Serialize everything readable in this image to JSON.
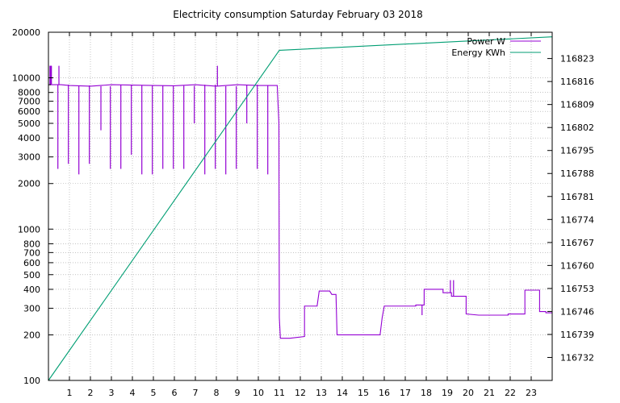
{
  "colors": {
    "power": "#9400d3",
    "energy": "#009e73",
    "grid": "#a0a0a0",
    "axis": "#000000"
  },
  "chart_data": {
    "type": "line",
    "title": "Electricity consumption Saturday February 03 2018",
    "xlim": [
      0,
      24
    ],
    "x_ticks": [
      1,
      2,
      3,
      4,
      5,
      6,
      7,
      8,
      9,
      10,
      11,
      12,
      13,
      14,
      15,
      16,
      17,
      18,
      19,
      20,
      21,
      22,
      23
    ],
    "y_left": {
      "scale": "log",
      "lim": [
        100,
        20000
      ],
      "ticks": [
        100,
        200,
        300,
        400,
        500,
        600,
        700,
        800,
        1000,
        2000,
        3000,
        4000,
        5000,
        6000,
        7000,
        8000,
        10000,
        20000
      ]
    },
    "y_right": {
      "scale": "linear",
      "lim": [
        116725,
        116831
      ],
      "ticks": [
        116732,
        116739,
        116746,
        116753,
        116760,
        116767,
        116774,
        116781,
        116788,
        116795,
        116802,
        116809,
        116816,
        116823
      ]
    },
    "legend": {
      "placement": "top-right",
      "entries": [
        "Power W",
        "Energy KWh"
      ]
    },
    "series": [
      {
        "name": "Power W",
        "axis": "left",
        "baseline": [
          [
            0.05,
            9000
          ],
          [
            0.6,
            9000
          ],
          [
            1.0,
            8900
          ],
          [
            2.0,
            8800
          ],
          [
            3.0,
            9000
          ],
          [
            4.0,
            8950
          ],
          [
            5.0,
            8900
          ],
          [
            6.0,
            8850
          ],
          [
            7.0,
            9000
          ],
          [
            8.0,
            8800
          ],
          [
            9.0,
            9000
          ],
          [
            10.0,
            8900
          ],
          [
            10.9,
            8900
          ],
          [
            10.98,
            5000
          ],
          [
            11.0,
            260
          ],
          [
            11.05,
            190
          ],
          [
            11.5,
            190
          ],
          [
            12.2,
            195
          ],
          [
            12.2,
            310
          ],
          [
            12.8,
            310
          ],
          [
            12.9,
            390
          ],
          [
            13.4,
            390
          ],
          [
            13.5,
            370
          ],
          [
            13.7,
            370
          ],
          [
            13.75,
            200
          ],
          [
            15.8,
            200
          ],
          [
            15.9,
            260
          ],
          [
            16.0,
            310
          ],
          [
            17.5,
            310
          ],
          [
            17.5,
            315
          ],
          [
            17.9,
            315
          ],
          [
            17.9,
            400
          ],
          [
            18.8,
            400
          ],
          [
            18.8,
            380
          ],
          [
            19.2,
            380
          ],
          [
            19.2,
            360
          ],
          [
            19.9,
            360
          ],
          [
            19.9,
            275
          ],
          [
            20.5,
            270
          ],
          [
            21.9,
            270
          ],
          [
            21.9,
            275
          ],
          [
            22.7,
            275
          ],
          [
            22.7,
            395
          ],
          [
            23.4,
            395
          ],
          [
            23.4,
            285
          ],
          [
            23.7,
            285
          ],
          [
            23.7,
            280
          ],
          [
            24.0,
            280
          ]
        ],
        "spikes": [
          [
            0.08,
            12000
          ],
          [
            0.13,
            12000
          ],
          [
            0.5,
            12000
          ],
          [
            0.45,
            2500
          ],
          [
            0.95,
            2700
          ],
          [
            1.45,
            2300
          ],
          [
            1.95,
            2700
          ],
          [
            2.5,
            4500
          ],
          [
            2.95,
            2500
          ],
          [
            3.45,
            2500
          ],
          [
            3.95,
            3100
          ],
          [
            4.45,
            2300
          ],
          [
            4.95,
            2300
          ],
          [
            5.45,
            2500
          ],
          [
            5.95,
            2500
          ],
          [
            6.45,
            2500
          ],
          [
            6.95,
            5000
          ],
          [
            7.45,
            2300
          ],
          [
            7.95,
            2500
          ],
          [
            8.05,
            12000
          ],
          [
            8.45,
            2300
          ],
          [
            8.95,
            2500
          ],
          [
            9.45,
            5000
          ],
          [
            9.95,
            2500
          ],
          [
            10.45,
            2300
          ],
          [
            17.8,
            270
          ],
          [
            19.15,
            460
          ],
          [
            19.3,
            460
          ]
        ]
      },
      {
        "name": "Energy KWh",
        "axis": "right",
        "points": [
          [
            0,
            116725
          ],
          [
            11.0,
            116825.5
          ],
          [
            24.0,
            116829.6
          ]
        ]
      }
    ]
  }
}
